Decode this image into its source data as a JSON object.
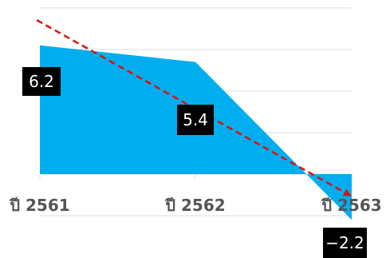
{
  "chart_data": {
    "type": "area",
    "categories": [
      "ปี 2561",
      "ปี 2562",
      "ปี 2563"
    ],
    "series": [
      {
        "values": [
          6.2,
          5.4,
          -2.2
        ]
      }
    ],
    "data_labels": [
      "6.2",
      "5.4",
      "−2.2"
    ],
    "ylim": [
      -2.2,
      8.0
    ],
    "gridlines": [
      -2,
      0,
      2,
      4,
      6,
      8
    ],
    "grid": true,
    "trendline": {
      "style": "dashed",
      "color": "#e01010",
      "arrow": true
    },
    "colors": {
      "area": "#00aeef",
      "trend": "#e01010",
      "label_bg": "#000000",
      "label_text": "#ffffff",
      "tick": "#555555",
      "grid": "#dddddd"
    }
  }
}
